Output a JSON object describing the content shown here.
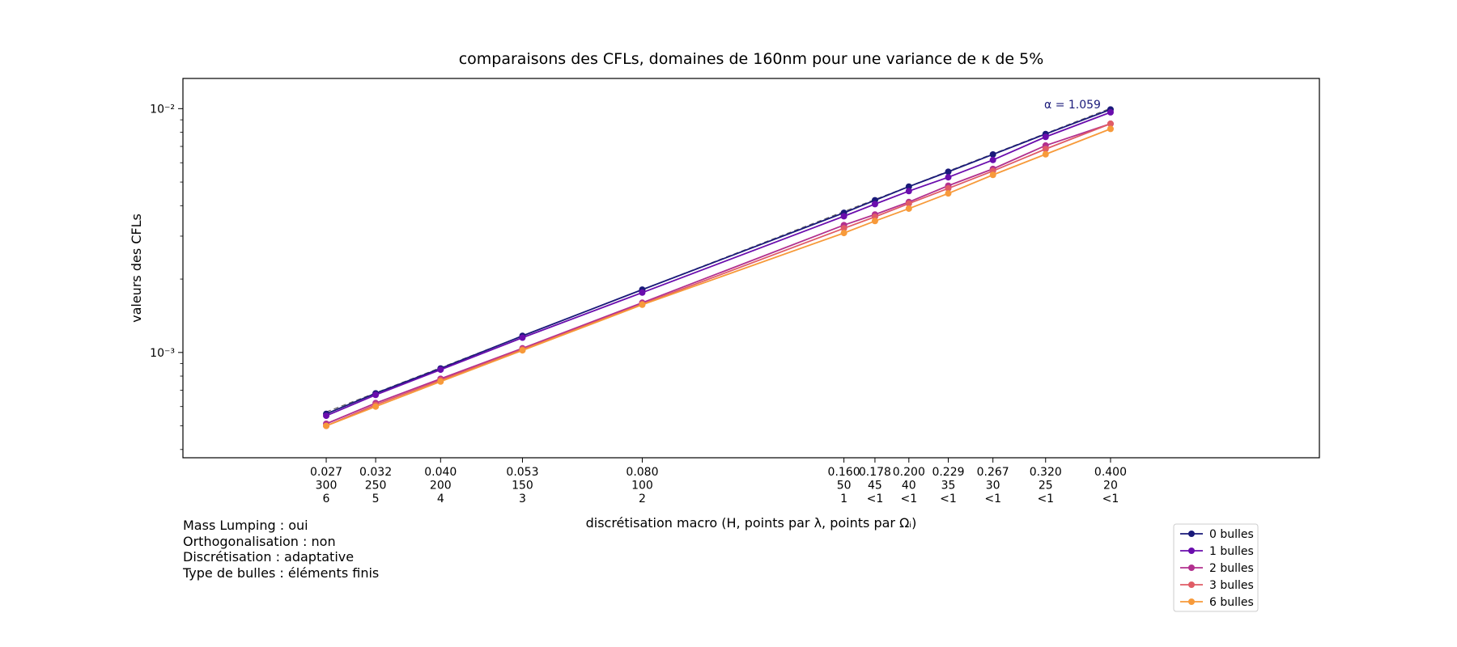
{
  "chart_data": {
    "type": "line",
    "title": "comparaisons des CFLs, domaines de 160nm pour une variance de κ de 5%",
    "xlabel": "discrétisation macro (H, points par λ, points par Ωᵢ)",
    "ylabel": "valeurs des CFLs",
    "xscale": "log",
    "yscale": "log",
    "xlim": [
      0.0165,
      0.82
    ],
    "ylim": [
      0.00037,
      0.0133
    ],
    "y_tick_labels": [
      "10⁻²",
      "10⁻³"
    ],
    "x": [
      0.027,
      0.032,
      0.04,
      0.053,
      0.08,
      0.16,
      0.178,
      0.2,
      0.229,
      0.267,
      0.32,
      0.4
    ],
    "x_tick_labels": [
      [
        "0.027",
        "300",
        "6"
      ],
      [
        "0.032",
        "250",
        "5"
      ],
      [
        "0.040",
        "200",
        "4"
      ],
      [
        "0.053",
        "150",
        "3"
      ],
      [
        "0.080",
        "100",
        "2"
      ],
      [
        "0.160",
        "50",
        "1"
      ],
      [
        "0.178",
        "45",
        "<1"
      ],
      [
        "0.200",
        "40",
        "<1"
      ],
      [
        "0.229",
        "35",
        "<1"
      ],
      [
        "0.267",
        "30",
        "<1"
      ],
      [
        "0.320",
        "25",
        "<1"
      ],
      [
        "0.400",
        "20",
        "<1"
      ]
    ],
    "series": [
      {
        "name": "0 bulles",
        "color": "#1a1a7a",
        "values": [
          0.00056,
          0.00068,
          0.00086,
          0.00117,
          0.00181,
          0.00374,
          0.00421,
          0.00479,
          0.00551,
          0.00649,
          0.00787,
          0.00992
        ]
      },
      {
        "name": "1 bulles",
        "color": "#6a0dad",
        "values": [
          0.00055,
          0.00067,
          0.00085,
          0.00115,
          0.00176,
          0.00362,
          0.00406,
          0.00459,
          0.00523,
          0.00616,
          0.00766,
          0.00966
        ]
      },
      {
        "name": "2 bulles",
        "color": "#b2308f",
        "values": [
          0.00051,
          0.00062,
          0.00078,
          0.00104,
          0.0016,
          0.00333,
          0.00368,
          0.00414,
          0.00483,
          0.00566,
          0.00706,
          0.00867
        ]
      },
      {
        "name": "3 bulles",
        "color": "#e05c66",
        "values": [
          0.0005,
          0.00061,
          0.00077,
          0.00103,
          0.00158,
          0.00323,
          0.0036,
          0.00408,
          0.00471,
          0.00555,
          0.00683,
          0.00867
        ]
      },
      {
        "name": "6 bulles",
        "color": "#f79a3a",
        "values": [
          0.0005,
          0.0006,
          0.00076,
          0.00102,
          0.00157,
          0.00309,
          0.00346,
          0.00389,
          0.00449,
          0.00535,
          0.0065,
          0.00826
        ]
      }
    ],
    "fit_line": {
      "x": [
        0.027,
        0.4
      ],
      "values": [
        0.00057,
        0.01003
      ],
      "color": "#666666",
      "style": "dashed"
    },
    "annotation": {
      "text": "α = 1.059",
      "color": "#1a1a7a"
    },
    "legend_placement": "bottom-right",
    "grid": false
  },
  "notes": [
    "Mass Lumping : oui",
    "Orthogonalisation : non",
    "Discrétisation : adaptative",
    "Type de bulles : éléments finis"
  ]
}
